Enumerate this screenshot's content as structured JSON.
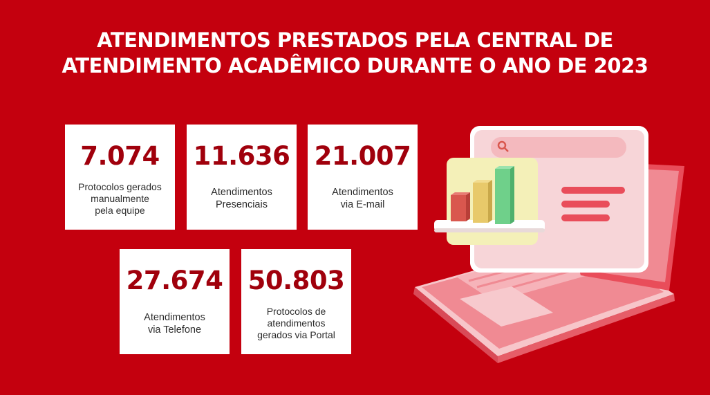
{
  "title": {
    "line1": "ATENDIMENTOS PRESTADOS PELA CENTRAL DE",
    "line2": "ATENDIMENTO ACADÊMICO DURANTE O ANO DE 2023"
  },
  "stats": [
    {
      "value": "7.074",
      "label_lines": [
        "Protocolos gerados",
        "manualmente",
        "pela equipe"
      ]
    },
    {
      "value": "11.636",
      "label_lines": [
        "Atendimentos",
        "Presenciais"
      ]
    },
    {
      "value": "21.007",
      "label_lines": [
        "Atendimentos",
        "via E-mail"
      ]
    },
    {
      "value": "27.674",
      "label_lines": [
        "Atendimentos",
        "via Telefone"
      ]
    },
    {
      "value": "50.803",
      "label_lines": [
        "Protocolos de",
        "atendimentos",
        "gerados via Portal"
      ]
    }
  ],
  "illustration": {
    "icons": [
      "laptop-icon",
      "search-icon",
      "bar-chart-icon"
    ],
    "colors": {
      "background": "#c4000e",
      "number": "#a0000c",
      "laptop": "#f08088",
      "screen": "#f6d3d6",
      "chart_panel": "#f4f0b8",
      "bar_red": "#d9574e",
      "bar_yellow": "#e8c96a",
      "bar_green": "#6fd08a"
    }
  }
}
